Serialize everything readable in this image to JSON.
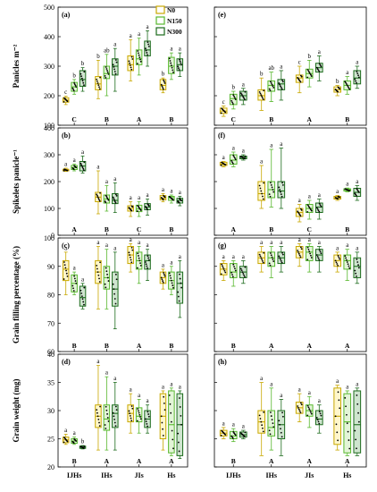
{
  "legend": [
    {
      "name": "N0",
      "color": "#c8a800"
    },
    {
      "name": "N150",
      "color": "#58b82e"
    },
    {
      "name": "N300",
      "color": "#1c6b1c"
    }
  ],
  "categories": [
    "IJHs",
    "IHs",
    "JIs",
    "Hs"
  ],
  "rows": [
    {
      "ylabel": "Panicles m⁻²",
      "ylim": [
        100,
        500
      ],
      "ticks": [
        100,
        200,
        300,
        400,
        500
      ]
    },
    {
      "ylabel": "Spikelets panicle⁻¹",
      "ylim": [
        0,
        400
      ],
      "ticks": [
        0,
        100,
        200,
        300,
        400
      ]
    },
    {
      "ylabel": "Grain filling percentage (%)",
      "ylim": [
        60,
        100
      ],
      "ticks": [
        60,
        70,
        80,
        90,
        100
      ]
    },
    {
      "ylabel": "Grain weight (mg)",
      "ylim": [
        20,
        40
      ],
      "ticks": [
        20,
        25,
        30,
        35,
        40
      ]
    }
  ],
  "chart_data": [
    {
      "panel": "(a)",
      "type": "box",
      "row": 0,
      "col": 0,
      "boxes": [
        [
          {
            "min": 170,
            "q1": 178,
            "med": 185,
            "q3": 193,
            "max": 198,
            "sig": "c"
          },
          {
            "min": 205,
            "q1": 215,
            "med": 230,
            "q3": 245,
            "max": 255,
            "sig": "b"
          },
          {
            "min": 215,
            "q1": 232,
            "med": 255,
            "q3": 285,
            "max": 295,
            "sig": "b"
          }
        ],
        [
          {
            "min": 190,
            "q1": 220,
            "med": 240,
            "q3": 265,
            "max": 320,
            "sig": "b"
          },
          {
            "min": 200,
            "q1": 258,
            "med": 275,
            "q3": 300,
            "max": 340,
            "sig": "ab"
          },
          {
            "min": 215,
            "q1": 270,
            "med": 300,
            "q3": 325,
            "max": 360,
            "sig": "a"
          }
        ],
        [
          {
            "min": 250,
            "q1": 285,
            "med": 305,
            "q3": 335,
            "max": 390,
            "sig": "a"
          },
          {
            "min": 270,
            "q1": 305,
            "med": 325,
            "q3": 355,
            "max": 395,
            "sig": "a"
          },
          {
            "min": 300,
            "q1": 335,
            "med": 355,
            "q3": 385,
            "max": 420,
            "sig": "a"
          }
        ],
        [
          {
            "min": 210,
            "q1": 220,
            "med": 235,
            "q3": 255,
            "max": 260,
            "sig": "b"
          },
          {
            "min": 255,
            "q1": 275,
            "med": 300,
            "q3": 330,
            "max": 345,
            "sig": "a"
          },
          {
            "min": 265,
            "q1": 285,
            "med": 305,
            "q3": 325,
            "max": 345,
            "sig": "a"
          }
        ]
      ],
      "groups": [
        "C",
        "B",
        "A",
        "B"
      ]
    },
    {
      "panel": "(e)",
      "type": "box",
      "row": 0,
      "col": 1,
      "boxes": [
        [
          {
            "min": 130,
            "q1": 140,
            "med": 148,
            "q3": 158,
            "max": 165,
            "sig": "c"
          },
          {
            "min": 155,
            "q1": 170,
            "med": 190,
            "q3": 205,
            "max": 215,
            "sig": "b"
          },
          {
            "min": 170,
            "q1": 185,
            "med": 200,
            "q3": 215,
            "max": 225,
            "sig": "a"
          }
        ],
        [
          {
            "min": 150,
            "q1": 185,
            "med": 200,
            "q3": 220,
            "max": 260,
            "sig": "b"
          },
          {
            "min": 180,
            "q1": 215,
            "med": 235,
            "q3": 250,
            "max": 280,
            "sig": "ab"
          },
          {
            "min": 185,
            "q1": 220,
            "med": 240,
            "q3": 255,
            "max": 285,
            "sig": "a"
          }
        ],
        [
          {
            "min": 210,
            "q1": 245,
            "med": 260,
            "q3": 270,
            "max": 300,
            "sig": "c"
          },
          {
            "min": 230,
            "q1": 260,
            "med": 275,
            "q3": 290,
            "max": 320,
            "sig": "b"
          },
          {
            "min": 250,
            "q1": 280,
            "med": 295,
            "q3": 310,
            "max": 335,
            "sig": "a"
          }
        ],
        [
          {
            "min": 200,
            "q1": 212,
            "med": 220,
            "q3": 230,
            "max": 235,
            "sig": "b"
          },
          {
            "min": 205,
            "q1": 220,
            "med": 235,
            "q3": 250,
            "max": 265,
            "sig": "a"
          },
          {
            "min": 225,
            "q1": 240,
            "med": 260,
            "q3": 285,
            "max": 300,
            "sig": "a"
          }
        ]
      ],
      "groups": [
        "C",
        "B",
        "A",
        "B"
      ]
    },
    {
      "panel": "(b)",
      "type": "box",
      "row": 1,
      "col": 0,
      "boxes": [
        [
          {
            "min": 238,
            "q1": 240,
            "med": 243,
            "q3": 246,
            "max": 250,
            "sig": "a"
          },
          {
            "min": 240,
            "q1": 245,
            "med": 252,
            "q3": 260,
            "max": 265,
            "sig": "a"
          },
          {
            "min": 232,
            "q1": 240,
            "med": 258,
            "q3": 275,
            "max": 295,
            "sig": "a"
          }
        ],
        [
          {
            "min": 80,
            "q1": 125,
            "med": 142,
            "q3": 160,
            "max": 240,
            "sig": "a"
          },
          {
            "min": 90,
            "q1": 120,
            "med": 135,
            "q3": 150,
            "max": 185,
            "sig": "a"
          },
          {
            "min": 85,
            "q1": 118,
            "med": 130,
            "q3": 155,
            "max": 195,
            "sig": "a"
          }
        ],
        [
          {
            "min": 70,
            "q1": 90,
            "med": 100,
            "q3": 110,
            "max": 125,
            "sig": "a"
          },
          {
            "min": 70,
            "q1": 88,
            "med": 98,
            "q3": 112,
            "max": 125,
            "sig": "a"
          },
          {
            "min": 75,
            "q1": 95,
            "med": 105,
            "q3": 118,
            "max": 135,
            "sig": "a"
          }
        ],
        [
          {
            "min": 125,
            "q1": 132,
            "med": 138,
            "q3": 148,
            "max": 155,
            "sig": "a"
          },
          {
            "min": 120,
            "q1": 130,
            "med": 140,
            "q3": 145,
            "max": 150,
            "sig": "a"
          },
          {
            "min": 110,
            "q1": 120,
            "med": 130,
            "q3": 138,
            "max": 145,
            "sig": "a"
          }
        ]
      ],
      "groups": [
        "A",
        "B",
        "C",
        "B"
      ]
    },
    {
      "panel": "(f)",
      "type": "box",
      "row": 1,
      "col": 1,
      "boxes": [
        [
          {
            "min": 255,
            "q1": 260,
            "med": 265,
            "q3": 272,
            "max": 275,
            "sig": "a"
          },
          {
            "min": 255,
            "q1": 265,
            "med": 280,
            "q3": 300,
            "max": 310,
            "sig": "a"
          },
          {
            "min": 280,
            "q1": 285,
            "med": 290,
            "q3": 295,
            "max": 300,
            "sig": "a"
          }
        ],
        [
          {
            "min": 100,
            "q1": 130,
            "med": 155,
            "q3": 200,
            "max": 260,
            "sig": "a"
          },
          {
            "min": 105,
            "q1": 140,
            "med": 170,
            "q3": 200,
            "max": 320,
            "sig": "a"
          },
          {
            "min": 100,
            "q1": 140,
            "med": 165,
            "q3": 200,
            "max": 325,
            "sig": "a"
          }
        ],
        [
          {
            "min": 50,
            "q1": 70,
            "med": 85,
            "q3": 100,
            "max": 115,
            "sig": "a"
          },
          {
            "min": 60,
            "q1": 85,
            "med": 100,
            "q3": 115,
            "max": 130,
            "sig": "a"
          },
          {
            "min": 60,
            "q1": 85,
            "med": 105,
            "q3": 120,
            "max": 135,
            "sig": "a"
          }
        ],
        [
          {
            "min": 130,
            "q1": 135,
            "med": 140,
            "q3": 145,
            "max": 148,
            "sig": "a"
          },
          {
            "min": 162,
            "q1": 165,
            "med": 170,
            "q3": 173,
            "max": 176,
            "sig": "a"
          },
          {
            "min": 130,
            "q1": 145,
            "med": 160,
            "q3": 175,
            "max": 185,
            "sig": "a"
          }
        ]
      ],
      "groups": [
        "A",
        "B",
        "C",
        "B"
      ]
    },
    {
      "panel": "(c)",
      "type": "box",
      "row": 2,
      "col": 0,
      "boxes": [
        [
          {
            "min": 80,
            "q1": 85,
            "med": 89,
            "q3": 92,
            "max": 95,
            "sig": "a"
          },
          {
            "min": 80,
            "q1": 81,
            "med": 84,
            "q3": 87,
            "max": 88,
            "sig": "a"
          },
          {
            "min": 75,
            "q1": 76,
            "med": 79,
            "q3": 83,
            "max": 84,
            "sig": "a"
          }
        ],
        [
          {
            "min": 75,
            "q1": 84,
            "med": 88,
            "q3": 92,
            "max": 97,
            "sig": "a"
          },
          {
            "min": 75,
            "q1": 82,
            "med": 86,
            "q3": 90,
            "max": 96,
            "sig": "a"
          },
          {
            "min": 68,
            "q1": 76,
            "med": 82,
            "q3": 88,
            "max": 95,
            "sig": "a"
          }
        ],
        [
          {
            "min": 88,
            "q1": 91,
            "med": 94,
            "q3": 97,
            "max": 98,
            "sig": "a"
          },
          {
            "min": 84,
            "q1": 89,
            "med": 92,
            "q3": 95,
            "max": 97,
            "sig": "a"
          },
          {
            "min": 85,
            "q1": 89,
            "med": 92,
            "q3": 94,
            "max": 96,
            "sig": "a"
          }
        ],
        [
          {
            "min": 82,
            "q1": 84,
            "med": 86,
            "q3": 88,
            "max": 89,
            "sig": "a"
          },
          {
            "min": 80,
            "q1": 82,
            "med": 85,
            "q3": 88,
            "max": 90,
            "sig": "a"
          },
          {
            "min": 72,
            "q1": 77,
            "med": 84,
            "q3": 88,
            "max": 92,
            "sig": "a"
          }
        ]
      ],
      "groups": [
        "B",
        "B",
        "A",
        "B"
      ]
    },
    {
      "panel": "(g)",
      "type": "box",
      "row": 2,
      "col": 1,
      "boxes": [
        [
          {
            "min": 85,
            "q1": 87,
            "med": 89,
            "q3": 91,
            "max": 92,
            "sig": "a"
          },
          {
            "min": 83,
            "q1": 86,
            "med": 88,
            "q3": 91,
            "max": 92,
            "sig": "a"
          },
          {
            "min": 84,
            "q1": 86,
            "med": 88,
            "q3": 90,
            "max": 92,
            "sig": "a"
          }
        ],
        [
          {
            "min": 88,
            "q1": 91,
            "med": 93,
            "q3": 95,
            "max": 97,
            "sig": "a"
          },
          {
            "min": 86,
            "q1": 90,
            "med": 93,
            "q3": 95,
            "max": 97,
            "sig": "a"
          },
          {
            "min": 88,
            "q1": 91,
            "med": 93,
            "q3": 95,
            "max": 97,
            "sig": "a"
          }
        ],
        [
          {
            "min": 90,
            "q1": 93,
            "med": 95,
            "q3": 97,
            "max": 98,
            "sig": "a"
          },
          {
            "min": 88,
            "q1": 92,
            "med": 95,
            "q3": 97,
            "max": 98,
            "sig": "a"
          },
          {
            "min": 88,
            "q1": 92,
            "med": 94,
            "q3": 96,
            "max": 97,
            "sig": "a"
          }
        ],
        [
          {
            "min": 88,
            "q1": 90,
            "med": 92,
            "q3": 94,
            "max": 95,
            "sig": "a"
          },
          {
            "min": 85,
            "q1": 89,
            "med": 92,
            "q3": 94,
            "max": 96,
            "sig": "a"
          },
          {
            "min": 84,
            "q1": 86,
            "med": 90,
            "q3": 93,
            "max": 95,
            "sig": "a"
          }
        ]
      ],
      "groups": [
        "B",
        "A",
        "A",
        "A"
      ]
    },
    {
      "panel": "(d)",
      "type": "box",
      "row": 3,
      "col": 0,
      "boxes": [
        [
          {
            "min": 24,
            "q1": 24.3,
            "med": 24.8,
            "q3": 25.3,
            "max": 25.8,
            "sig": "a"
          },
          {
            "min": 24,
            "q1": 24.2,
            "med": 24.6,
            "q3": 25,
            "max": 25.3,
            "sig": "a"
          },
          {
            "min": 23.2,
            "q1": 23.3,
            "med": 23.5,
            "q3": 23.7,
            "max": 23.8,
            "sig": "b"
          }
        ],
        [
          {
            "min": 23,
            "q1": 27,
            "med": 29,
            "q3": 31,
            "max": 38,
            "sig": "a"
          },
          {
            "min": 23,
            "q1": 26.5,
            "med": 28.5,
            "q3": 31,
            "max": 36,
            "sig": "a"
          },
          {
            "min": 23,
            "q1": 27,
            "med": 29.5,
            "q3": 31,
            "max": 35,
            "sig": "a"
          }
        ],
        [
          {
            "min": 26,
            "q1": 28,
            "med": 29.5,
            "q3": 31,
            "max": 33,
            "sig": "a"
          },
          {
            "min": 26,
            "q1": 28,
            "med": 29,
            "q3": 30.5,
            "max": 32,
            "sig": "a"
          },
          {
            "min": 26,
            "q1": 27,
            "med": 28.5,
            "q3": 30,
            "max": 31,
            "sig": "a"
          }
        ],
        [
          {
            "min": 23,
            "q1": 25,
            "med": 29,
            "q3": 33,
            "max": 33.5,
            "sig": "a"
          },
          {
            "min": 22,
            "q1": 22.5,
            "med": 27.5,
            "q3": 33.5,
            "max": 34,
            "sig": "a"
          },
          {
            "min": 21.5,
            "q1": 22,
            "med": 27.5,
            "q3": 33,
            "max": 33.5,
            "sig": "a"
          }
        ]
      ],
      "groups": [
        "B",
        "A",
        "A",
        "A"
      ]
    },
    {
      "panel": "(h)",
      "type": "box",
      "row": 3,
      "col": 1,
      "boxes": [
        [
          {
            "min": 25,
            "q1": 25.5,
            "med": 26,
            "q3": 26.5,
            "max": 27,
            "sig": "a"
          },
          {
            "min": 24.5,
            "q1": 25,
            "med": 25.5,
            "q3": 26.3,
            "max": 26.8,
            "sig": "a"
          },
          {
            "min": 25,
            "q1": 25.3,
            "med": 25.7,
            "q3": 26.2,
            "max": 26.5,
            "sig": "a"
          }
        ],
        [
          {
            "min": 22,
            "q1": 26,
            "med": 28,
            "q3": 30,
            "max": 35,
            "sig": "a"
          },
          {
            "min": 23,
            "q1": 25.5,
            "med": 27,
            "q3": 30,
            "max": 34,
            "sig": "a"
          },
          {
            "min": 22,
            "q1": 25,
            "med": 27.5,
            "q3": 30,
            "max": 32,
            "sig": "a"
          }
        ],
        [
          {
            "min": 28,
            "q1": 29.5,
            "med": 30.5,
            "q3": 31.5,
            "max": 33,
            "sig": "a"
          },
          {
            "min": 27,
            "q1": 29,
            "med": 30,
            "q3": 31,
            "max": 32.5,
            "sig": "a"
          },
          {
            "min": 26,
            "q1": 27.5,
            "med": 28.5,
            "q3": 30,
            "max": 31,
            "sig": "a"
          }
        ],
        [
          {
            "min": 23,
            "q1": 24,
            "med": 29,
            "q3": 34,
            "max": 34.5,
            "sig": "a"
          },
          {
            "min": 22,
            "q1": 22.5,
            "med": 28,
            "q3": 33,
            "max": 33.5,
            "sig": "a"
          },
          {
            "min": 22,
            "q1": 22.5,
            "med": 27.5,
            "q3": 33.5,
            "max": 34,
            "sig": "a"
          }
        ]
      ],
      "groups": [
        "B",
        "A",
        "A",
        "A"
      ]
    }
  ]
}
